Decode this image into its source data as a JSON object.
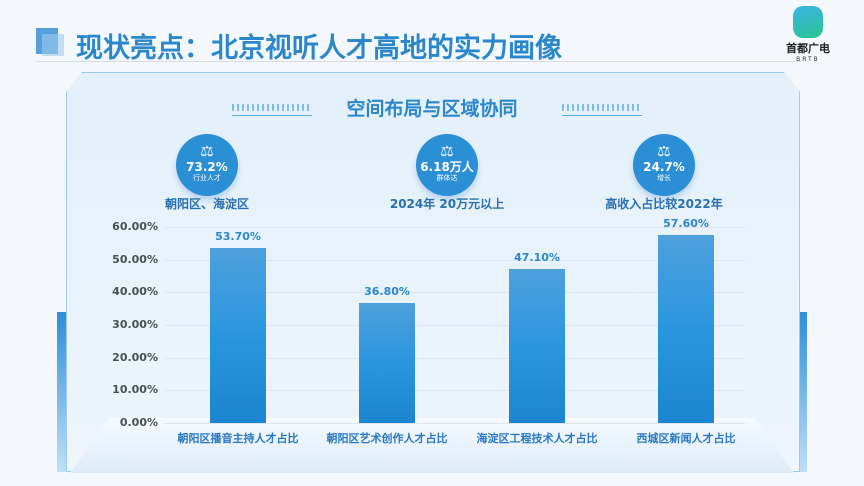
{
  "header": {
    "title": "现状亮点：北京视听人才高地的实力画像",
    "logo_cn": "首都广电",
    "logo_en": "BRTB"
  },
  "section": {
    "subtitle": "空间布局与区域协同"
  },
  "highlights": [
    {
      "icon": "scale-icon",
      "value": "73.2%",
      "sub": "行业人才",
      "caption": "朝阳区、海淀区"
    },
    {
      "icon": "scale-icon",
      "value": "6.18万人",
      "sub": "群体达",
      "caption": "2024年 20万元以上"
    },
    {
      "icon": "scale-icon",
      "value": "24.7%",
      "sub": "增长",
      "caption": "高收入占比较2022年"
    }
  ],
  "chart_data": {
    "type": "bar",
    "categories": [
      "朝阳区播音主持人才占比",
      "朝阳区艺术创作人才占比",
      "海淀区工程技术人才占比",
      "西城区新闻人才占比"
    ],
    "values": [
      53.7,
      36.8,
      47.1,
      57.6
    ],
    "data_labels": [
      "53.70%",
      "36.80%",
      "47.10%",
      "57.60%"
    ],
    "ylim": [
      0,
      60
    ],
    "yticks": [
      "0.00%",
      "10.00%",
      "20.00%",
      "30.00%",
      "40.00%",
      "50.00%",
      "60.00%"
    ],
    "grid": true,
    "bar_color": "#2a96df"
  }
}
